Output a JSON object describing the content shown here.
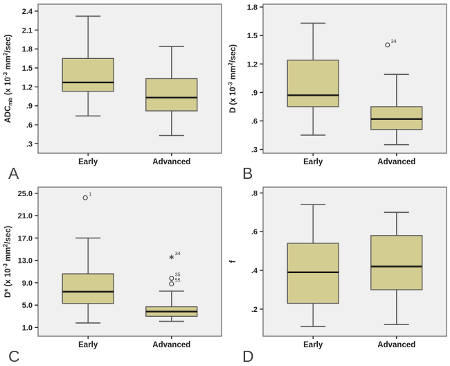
{
  "figure": {
    "description": "Four-panel box plot figure comparing Early vs Advanced groups",
    "categories": [
      "Early",
      "Advanced"
    ]
  },
  "colors": {
    "box_fill": "#d4cd92",
    "box_stroke": "#565656",
    "median_line": "#141414",
    "whisker": "#5a5a5a",
    "plot_background": "#f0f0f0",
    "plot_border": "#6b6b6b",
    "axis_text": "#1c1c1c",
    "outlier": "#3d3d3d",
    "panel_letter": "#3c3c3c",
    "page_background": "#ffffff"
  },
  "chart_data": [
    {
      "type": "box",
      "panel_label": "A",
      "ylabel": "ADCmb (x 10-3 mm2/sec)",
      "ylabel_segments": [
        {
          "t": "ADC"
        },
        {
          "t": "mb",
          "style": "sub"
        },
        {
          "t": " (x 10"
        },
        {
          "t": "-3",
          "style": "sup"
        },
        {
          "t": " mm"
        },
        {
          "t": "2",
          "style": "sup"
        },
        {
          "t": "/sec)"
        }
      ],
      "categories": [
        "Early",
        "Advanced"
      ],
      "yticks": [
        {
          "label": "2.4",
          "value": 2.4
        },
        {
          "label": "2.1",
          "value": 2.1
        },
        {
          "label": "1.8",
          "value": 1.8
        },
        {
          "label": "1.5",
          "value": 1.5
        },
        {
          "label": "1.2",
          "value": 1.2
        },
        {
          "label": ".9",
          "value": 0.9
        },
        {
          "label": ".6",
          "value": 0.6
        },
        {
          "label": ".3",
          "value": 0.3
        }
      ],
      "ylim": [
        0.15,
        2.51
      ],
      "grid": false,
      "legend": false,
      "series": [
        {
          "category": "Early",
          "whisker_low": 0.74,
          "q1": 1.13,
          "median": 1.27,
          "q3": 1.65,
          "whisker_high": 2.32,
          "outliers": []
        },
        {
          "category": "Advanced",
          "whisker_low": 0.43,
          "q1": 0.82,
          "median": 1.03,
          "q3": 1.33,
          "whisker_high": 1.84,
          "outliers": []
        }
      ]
    },
    {
      "type": "box",
      "panel_label": "B",
      "ylabel": "D (x 10-3 mm2/sec)",
      "ylabel_segments": [
        {
          "t": "D (x 10"
        },
        {
          "t": "-3",
          "style": "sup"
        },
        {
          "t": " mm"
        },
        {
          "t": "2",
          "style": "sup"
        },
        {
          "t": "/sec)"
        }
      ],
      "categories": [
        "Early",
        "Advanced"
      ],
      "yticks": [
        {
          "label": "1.8",
          "value": 1.8
        },
        {
          "label": "1.5",
          "value": 1.5
        },
        {
          "label": "1.2",
          "value": 1.2
        },
        {
          "label": ".9",
          "value": 0.9
        },
        {
          "label": ".6",
          "value": 0.6
        },
        {
          "label": ".3",
          "value": 0.3
        }
      ],
      "ylim": [
        0.26,
        1.83
      ],
      "grid": false,
      "legend": false,
      "series": [
        {
          "category": "Early",
          "whisker_low": 0.45,
          "q1": 0.75,
          "median": 0.87,
          "q3": 1.24,
          "whisker_high": 1.63,
          "outliers": []
        },
        {
          "category": "Advanced",
          "whisker_low": 0.35,
          "q1": 0.51,
          "median": 0.62,
          "q3": 0.75,
          "whisker_high": 1.09,
          "outliers": [
            {
              "value": 1.4,
              "label": "34",
              "marker": "circle",
              "dx": -13
            }
          ]
        }
      ]
    },
    {
      "type": "box",
      "panel_label": "C",
      "ylabel": "D* (x 10-3 mm2/sec)",
      "ylabel_segments": [
        {
          "t": "D* (x 10"
        },
        {
          "t": "-3",
          "style": "sup"
        },
        {
          "t": " mm"
        },
        {
          "t": "2",
          "style": "sup"
        },
        {
          "t": "/sec)"
        }
      ],
      "categories": [
        "Early",
        "Advanced"
      ],
      "yticks": [
        {
          "label": "25.0",
          "value": 25.0
        },
        {
          "label": "21.0",
          "value": 21.0
        },
        {
          "label": "17.0",
          "value": 17.0
        },
        {
          "label": "13.0",
          "value": 13.0
        },
        {
          "label": "9.0",
          "value": 9.0
        },
        {
          "label": "5.0",
          "value": 5.0
        },
        {
          "label": "1.0",
          "value": 1.0
        }
      ],
      "ylim": [
        -0.56,
        26.1
      ],
      "grid": false,
      "legend": false,
      "series": [
        {
          "category": "Early",
          "whisker_low": 1.8,
          "q1": 5.3,
          "median": 7.4,
          "q3": 10.6,
          "whisker_high": 17.0,
          "outliers": [
            {
              "value": 24.2,
              "label": "1",
              "marker": "circle",
              "dx": -4
            }
          ]
        },
        {
          "category": "Advanced",
          "whisker_low": 2.1,
          "q1": 3.0,
          "median": 3.85,
          "q3": 4.7,
          "whisker_high": 7.5,
          "outliers": [
            {
              "value": 13.6,
              "label": "34",
              "marker": "asterisk",
              "dx": 0
            },
            {
              "value": 9.8,
              "label": "35",
              "marker": "circle",
              "dx": 0
            },
            {
              "value": 8.8,
              "label": "55",
              "marker": "circle",
              "dx": 0
            }
          ]
        }
      ]
    },
    {
      "type": "box",
      "panel_label": "D",
      "ylabel": "f",
      "ylabel_segments": [
        {
          "t": "f"
        }
      ],
      "categories": [
        "Early",
        "Advanced"
      ],
      "yticks": [
        {
          "label": ".8",
          "value": 0.8
        },
        {
          "label": ".6",
          "value": 0.6
        },
        {
          "label": ".4",
          "value": 0.4
        },
        {
          "label": ".2",
          "value": 0.2
        }
      ],
      "ylim": [
        0.06,
        0.83
      ],
      "grid": false,
      "legend": false,
      "series": [
        {
          "category": "Early",
          "whisker_low": 0.11,
          "q1": 0.23,
          "median": 0.39,
          "q3": 0.54,
          "whisker_high": 0.74,
          "outliers": []
        },
        {
          "category": "Advanced",
          "whisker_low": 0.12,
          "q1": 0.3,
          "median": 0.42,
          "q3": 0.58,
          "whisker_high": 0.7,
          "outliers": []
        }
      ]
    }
  ]
}
